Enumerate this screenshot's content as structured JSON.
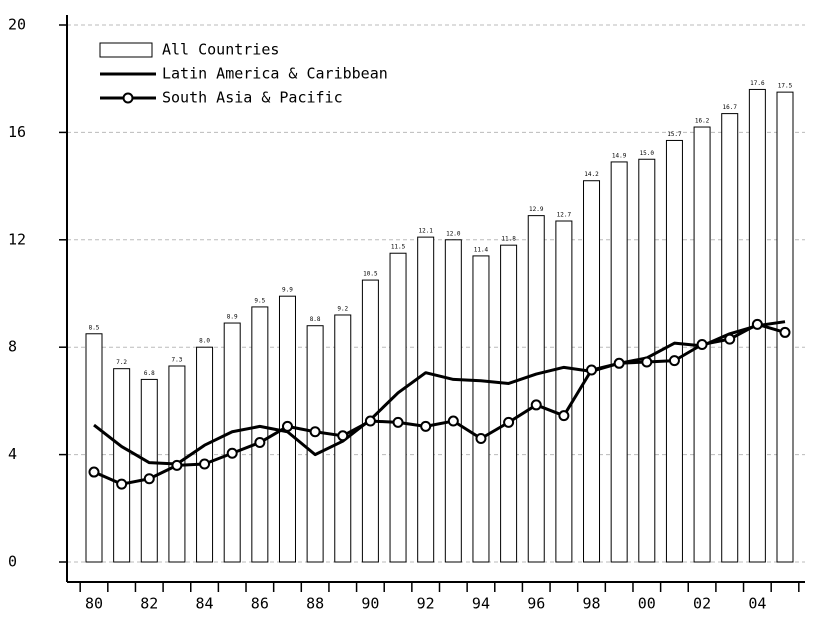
{
  "chart_data": {
    "type": "bar",
    "categories": [
      "80",
      null,
      "82",
      null,
      "84",
      null,
      "86",
      null,
      "88",
      null,
      "90",
      null,
      "92",
      null,
      "94",
      null,
      "96",
      null,
      "98",
      null,
      "00",
      null,
      "02",
      null,
      "04",
      null
    ],
    "series": [
      {
        "name": "All Countries",
        "type": "bar",
        "color": "#ffffff",
        "values": [
          8.5,
          7.2,
          6.8,
          7.3,
          8.0,
          8.9,
          9.5,
          9.9,
          8.8,
          9.2,
          10.5,
          11.5,
          12.1,
          12.0,
          11.4,
          11.8,
          12.9,
          12.7,
          14.2,
          14.9,
          15.0,
          15.7,
          16.2,
          16.7,
          17.6,
          17.5
        ],
        "value_labels": [
          "8.5",
          "7.2",
          "6.8",
          "7.3",
          "8.0",
          "8.9",
          "9.5",
          "9.9",
          "8.8",
          "9.2",
          "10.5",
          "11.5",
          "12.1",
          "12.0",
          "11.4",
          "11.8",
          "12.9",
          "12.7",
          "14.2",
          "14.9",
          "15.0",
          "15.7",
          "16.2",
          "16.7",
          "17.6",
          "17.5"
        ]
      },
      {
        "name": "Latin America & Caribbean",
        "type": "line",
        "color": "#000000",
        "values": [
          5.1,
          4.3,
          3.7,
          3.65,
          4.35,
          4.85,
          5.05,
          4.85,
          4.0,
          4.5,
          5.3,
          6.3,
          7.05,
          6.8,
          6.75,
          6.65,
          7.0,
          7.25,
          7.1,
          7.4,
          7.6,
          8.15,
          8.05,
          8.5,
          8.8,
          8.95
        ]
      },
      {
        "name": "South Asia & Pacific",
        "type": "line",
        "marker": "circle",
        "color": "#000000",
        "values": [
          3.35,
          2.9,
          3.1,
          3.6,
          3.65,
          4.05,
          4.45,
          5.05,
          4.85,
          4.7,
          5.25,
          5.2,
          5.05,
          5.25,
          4.6,
          5.2,
          5.85,
          5.45,
          7.15,
          7.4,
          7.45,
          7.5,
          8.1,
          8.3,
          8.85,
          8.55
        ]
      }
    ],
    "ylim": [
      0,
      20
    ],
    "yticks": [
      0,
      4,
      8,
      12,
      16,
      20
    ],
    "grid": true,
    "legend": "top-left"
  }
}
